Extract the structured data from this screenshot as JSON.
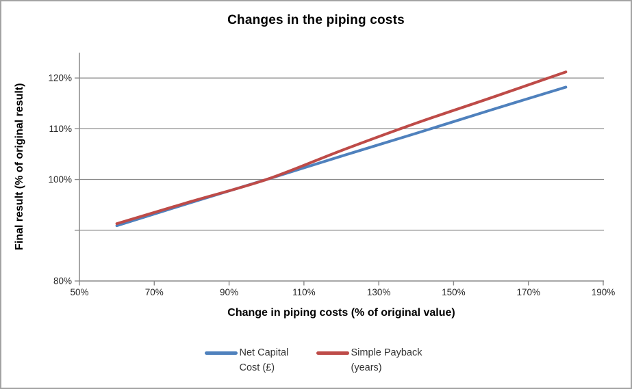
{
  "chart": {
    "title": "Changes in the piping costs",
    "xlabel": "Change in piping costs (% of original value)",
    "ylabel": "Final result (% of original result)"
  },
  "chart_data": {
    "type": "line",
    "title": "Changes in the piping costs",
    "xlabel": "Change in piping costs (% of original value)",
    "ylabel": "Final result (% of original result)",
    "xlim": [
      50,
      190
    ],
    "ylim": [
      80,
      125
    ],
    "grid": "horizontal-gridlines-only",
    "legend_position": "bottom",
    "smoothed_lines": true,
    "x": [
      60,
      80,
      100,
      120,
      140,
      160,
      180
    ],
    "series": [
      {
        "name": "Net Capital Cost (£)",
        "color": "#4F81BD",
        "values": [
          90.9,
          95.5,
          100.0,
          104.6,
          109.1,
          113.7,
          118.2
        ]
      },
      {
        "name": "Simple Payback (years)",
        "color": "#BE4B48",
        "values": [
          91.3,
          95.7,
          100.0,
          105.7,
          111.1,
          116.1,
          121.2
        ]
      }
    ],
    "x_ticks": [
      {
        "value": 50,
        "label": "50%"
      },
      {
        "value": 70,
        "label": "70%"
      },
      {
        "value": 90,
        "label": "90%"
      },
      {
        "value": 110,
        "label": "110%"
      },
      {
        "value": 130,
        "label": "130%"
      },
      {
        "value": 150,
        "label": "150%"
      },
      {
        "value": 170,
        "label": "170%"
      },
      {
        "value": 190,
        "label": "190%"
      }
    ],
    "y_ticks": [
      {
        "value": 80,
        "label": "80%"
      },
      {
        "value": 90,
        "label": ""
      },
      {
        "value": 100,
        "label": "100%"
      },
      {
        "value": 110,
        "label": "110%"
      },
      {
        "value": 120,
        "label": "120%"
      }
    ],
    "y_gridlines": [
      90,
      100,
      110,
      120
    ],
    "colors": {
      "axis": "#8A8A8A",
      "gridline": "#8A8A8A",
      "tick_label": "#262626",
      "frame_border": "#A3A3A3"
    }
  }
}
